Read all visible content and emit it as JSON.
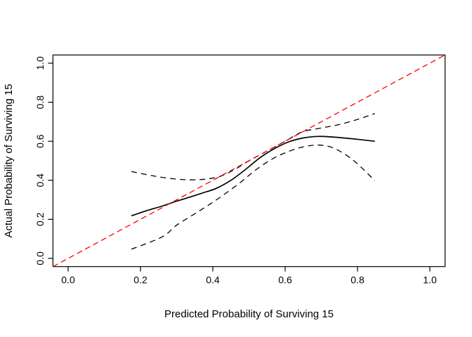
{
  "figure": {
    "background": "#ffffff"
  },
  "colors": {
    "ideal_line": "#ff0000",
    "curve": "#000000",
    "axis": "#000000"
  },
  "chart_data": {
    "type": "line",
    "title": "",
    "xlabel": "Predicted Probability of Surviving 15",
    "ylabel": "Actual Probability of Surviving 15",
    "xlim": [
      -0.042,
      1.042
    ],
    "ylim": [
      -0.042,
      1.042
    ],
    "grid": false,
    "legend_position": "none",
    "x_ticks": [
      0.0,
      0.2,
      0.4,
      0.6,
      0.8,
      1.0
    ],
    "y_ticks": [
      0.0,
      0.2,
      0.4,
      0.6,
      0.8,
      1.0
    ],
    "x_tick_labels": [
      "0.0",
      "0.2",
      "0.4",
      "0.6",
      "0.8",
      "1.0"
    ],
    "y_tick_labels": [
      "0.0",
      "0.2",
      "0.4",
      "0.6",
      "0.8",
      "1.0"
    ],
    "series": [
      {
        "name": "lower-confidence-band",
        "style": "dashed",
        "color": "#000000",
        "width": 1.3,
        "x": [
          0.175,
          0.26,
          0.3,
          0.36,
          0.41,
          0.47,
          0.52,
          0.57,
          0.62,
          0.66,
          0.7,
          0.74,
          0.79,
          0.848
        ],
        "y": [
          0.047,
          0.11,
          0.17,
          0.24,
          0.3,
          0.38,
          0.455,
          0.515,
          0.555,
          0.575,
          0.58,
          0.56,
          0.5,
          0.398
        ]
      },
      {
        "name": "upper-confidence-band",
        "style": "dashed",
        "color": "#000000",
        "width": 1.3,
        "x": [
          0.175,
          0.22,
          0.26,
          0.3,
          0.34,
          0.38,
          0.42,
          0.46,
          0.5,
          0.55,
          0.6,
          0.647,
          0.7,
          0.75,
          0.8,
          0.848
        ],
        "y": [
          0.445,
          0.428,
          0.415,
          0.406,
          0.402,
          0.406,
          0.42,
          0.455,
          0.5,
          0.55,
          0.6,
          0.648,
          0.668,
          0.686,
          0.712,
          0.742
        ]
      },
      {
        "name": "calibration-curve",
        "style": "solid",
        "color": "#000000",
        "width": 1.7,
        "x": [
          0.175,
          0.22,
          0.26,
          0.3,
          0.34,
          0.38,
          0.41,
          0.45,
          0.49,
          0.53,
          0.57,
          0.61,
          0.65,
          0.69,
          0.73,
          0.79,
          0.848
        ],
        "y": [
          0.218,
          0.246,
          0.268,
          0.293,
          0.316,
          0.34,
          0.359,
          0.4,
          0.455,
          0.515,
          0.562,
          0.597,
          0.617,
          0.625,
          0.622,
          0.612,
          0.6
        ]
      },
      {
        "name": "ideal-reference-line",
        "style": "dashed",
        "color": "#ff0000",
        "width": 1.3,
        "x": [
          -0.042,
          1.042
        ],
        "y": [
          -0.042,
          1.042
        ]
      }
    ]
  }
}
